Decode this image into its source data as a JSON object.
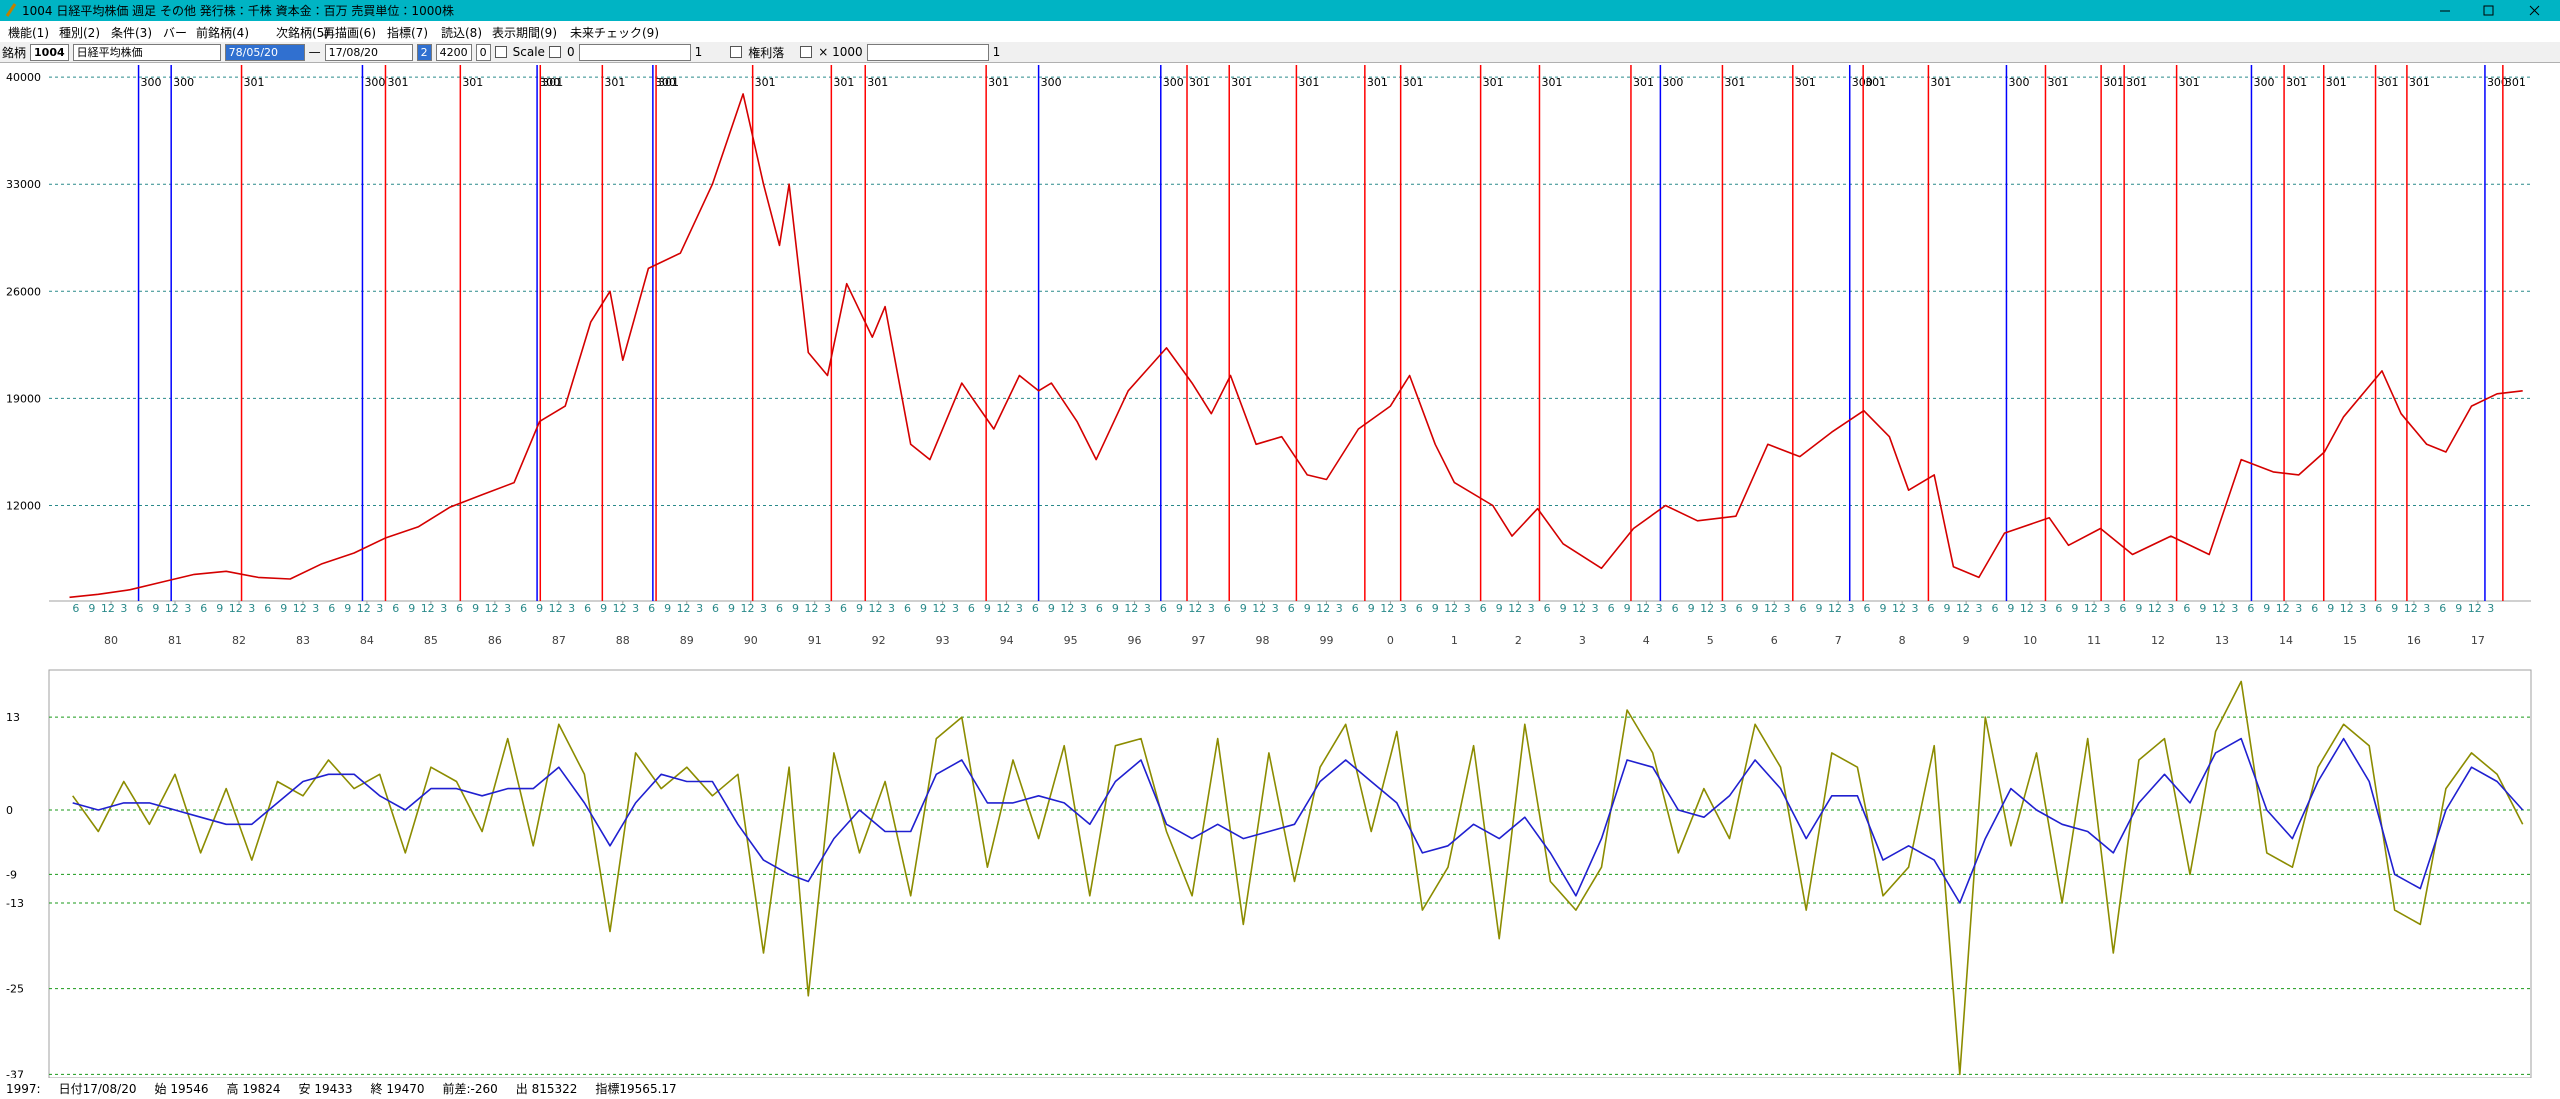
{
  "window": {
    "title": "1004 日経平均株価 週足 その他 発行株：千株 資本金：百万 売買単位：1000株",
    "menu": [
      "機能(1)",
      "種別(2)",
      "条件(3)",
      "バー",
      "前銘柄(4)",
      "次銘柄(5)",
      "再描画(6)",
      "指標(7)",
      "読込(8)",
      "表示期間(9)",
      "未来チェック(9)"
    ]
  },
  "toolbar": {
    "code_label": "銘柄",
    "code": "1004",
    "name": "日経平均株価",
    "from": "78/05/20",
    "dash": "—",
    "to": "17/08/20",
    "field1": "2",
    "field2": "4200",
    "field3": "0",
    "scale_label": "Scale",
    "scale_value": "0",
    "field4": "1",
    "rights_label": "権利落",
    "multiplier_label": "× 1000",
    "field5": "1"
  },
  "chart_data": [
    {
      "type": "line",
      "x": [
        1979.35,
        1979.8,
        1980.3,
        1980.8,
        1981.3,
        1981.8,
        1982.3,
        1982.8,
        1983.3,
        1983.8,
        1984.3,
        1984.8,
        1985.3,
        1985.8,
        1986.3,
        1986.7,
        1987.1,
        1987.5,
        1987.8,
        1988.0,
        1988.4,
        1988.9,
        1989.4,
        1989.88,
        1990.2,
        1990.45,
        1990.6,
        1990.9,
        1991.2,
        1991.5,
        1991.9,
        1992.1,
        1992.5,
        1992.8,
        1993.3,
        1993.8,
        1994.2,
        1994.5,
        1994.7,
        1995.1,
        1995.4,
        1995.9,
        1996.5,
        1996.9,
        1997.2,
        1997.5,
        1997.9,
        1998.3,
        1998.7,
        1999.0,
        1999.5,
        2000.0,
        2000.3,
        2000.7,
        2001.0,
        2001.6,
        2001.9,
        2002.3,
        2002.7,
        2003.3,
        2003.8,
        2004.3,
        2004.8,
        2005.4,
        2005.9,
        2006.4,
        2006.9,
        2007.4,
        2007.8,
        2008.1,
        2008.5,
        2008.8,
        2009.2,
        2009.6,
        2010.3,
        2010.6,
        2011.1,
        2011.6,
        2012.2,
        2012.8,
        2013.3,
        2013.8,
        2014.2,
        2014.6,
        2014.9,
        2015.5,
        2015.8,
        2016.2,
        2016.5,
        2016.9,
        2017.3,
        2017.7
      ],
      "series": [
        {
          "color": "#d40000",
          "values": [
            6000,
            6200,
            6500,
            7000,
            7500,
            7700,
            7300,
            7200,
            8200,
            8900,
            9900,
            10600,
            11900,
            12700,
            13500,
            17500,
            18500,
            24000,
            26000,
            21500,
            27500,
            28500,
            33000,
            38900,
            33000,
            29000,
            33000,
            22000,
            20500,
            26500,
            23000,
            25000,
            16000,
            15000,
            20000,
            17000,
            20500,
            19500,
            20000,
            17500,
            15000,
            19500,
            22300,
            20000,
            18000,
            20500,
            16000,
            16500,
            14000,
            13700,
            17000,
            18500,
            20500,
            16000,
            13500,
            12000,
            10000,
            11800,
            9500,
            7900,
            10500,
            12000,
            11000,
            11300,
            16000,
            15200,
            16800,
            18200,
            16500,
            13000,
            14000,
            8000,
            7300,
            10200,
            11200,
            9400,
            10500,
            8800,
            10000,
            8800,
            15000,
            14200,
            14000,
            15500,
            17800,
            20800,
            18000,
            16000,
            15500,
            18500,
            19300,
            19500
          ]
        }
      ],
      "xlim": [
        1979.03,
        2017.83
      ],
      "xticks": [
        {
          "value": 1980,
          "label": "80"
        },
        {
          "value": 1981,
          "label": "81"
        },
        {
          "value": 1982,
          "label": "82"
        },
        {
          "value": 1983,
          "label": "83"
        },
        {
          "value": 1984,
          "label": "84"
        },
        {
          "value": 1985,
          "label": "85"
        },
        {
          "value": 1986,
          "label": "86"
        },
        {
          "value": 1987,
          "label": "87"
        },
        {
          "value": 1988,
          "label": "88"
        },
        {
          "value": 1989,
          "label": "89"
        },
        {
          "value": 1990,
          "label": "90"
        },
        {
          "value": 1991,
          "label": "91"
        },
        {
          "value": 1992,
          "label": "92"
        },
        {
          "value": 1993,
          "label": "93"
        },
        {
          "value": 1994,
          "label": "94"
        },
        {
          "value": 1995,
          "label": "95"
        },
        {
          "value": 1996,
          "label": "96"
        },
        {
          "value": 1997,
          "label": "97"
        },
        {
          "value": 1998,
          "label": "98"
        },
        {
          "value": 1999,
          "label": "99"
        },
        {
          "value": 2000,
          "label": "0"
        },
        {
          "value": 2001,
          "label": "1"
        },
        {
          "value": 2002,
          "label": "2"
        },
        {
          "value": 2003,
          "label": "3"
        },
        {
          "value": 2004,
          "label": "4"
        },
        {
          "value": 2005,
          "label": "5"
        },
        {
          "value": 2006,
          "label": "6"
        },
        {
          "value": 2007,
          "label": "7"
        },
        {
          "value": 2008,
          "label": "8"
        },
        {
          "value": 2009,
          "label": "9"
        },
        {
          "value": 2010,
          "label": "10"
        },
        {
          "value": 2011,
          "label": "11"
        },
        {
          "value": 2012,
          "label": "12"
        },
        {
          "value": 2013,
          "label": "13"
        },
        {
          "value": 2014,
          "label": "14"
        },
        {
          "value": 2015,
          "label": "15"
        },
        {
          "value": 2016,
          "label": "16"
        },
        {
          "value": 2017,
          "label": "17"
        }
      ],
      "month_labels": [
        "6",
        "9",
        "12",
        "3"
      ],
      "ylim": [
        5760,
        40790
      ],
      "yticks": [
        12000,
        19000,
        26000,
        33000,
        40000
      ],
      "grid": true,
      "grid_color": "#2a8a8a",
      "signals": [
        {
          "x": 1980.43,
          "label": "300",
          "color": "#0000ff"
        },
        {
          "x": 1980.94,
          "label": "300",
          "color": "#0000ff"
        },
        {
          "x": 1982.04,
          "label": "301",
          "color": "#ff0000"
        },
        {
          "x": 1983.93,
          "label": "300",
          "color": "#0000ff"
        },
        {
          "x": 1984.29,
          "label": "301",
          "color": "#ff0000"
        },
        {
          "x": 1985.46,
          "label": "301",
          "color": "#ff0000"
        },
        {
          "x": 1986.66,
          "label": "300",
          "color": "#0000ff"
        },
        {
          "x": 1986.71,
          "label": "301",
          "color": "#ff0000"
        },
        {
          "x": 1987.68,
          "label": "301",
          "color": "#ff0000"
        },
        {
          "x": 1988.47,
          "label": "300",
          "color": "#0000ff"
        },
        {
          "x": 1988.52,
          "label": "301",
          "color": "#ff0000"
        },
        {
          "x": 1990.03,
          "label": "301",
          "color": "#ff0000"
        },
        {
          "x": 1991.26,
          "label": "301",
          "color": "#ff0000"
        },
        {
          "x": 1991.79,
          "label": "301",
          "color": "#ff0000"
        },
        {
          "x": 1993.68,
          "label": "301",
          "color": "#ff0000"
        },
        {
          "x": 1994.5,
          "label": "300",
          "color": "#0000ff"
        },
        {
          "x": 1996.41,
          "label": "300",
          "color": "#0000ff"
        },
        {
          "x": 1996.82,
          "label": "301",
          "color": "#ff0000"
        },
        {
          "x": 1997.48,
          "label": "301",
          "color": "#ff0000"
        },
        {
          "x": 1998.53,
          "label": "301",
          "color": "#ff0000"
        },
        {
          "x": 1999.6,
          "label": "301",
          "color": "#ff0000"
        },
        {
          "x": 2000.16,
          "label": "301",
          "color": "#ff0000"
        },
        {
          "x": 2001.41,
          "label": "301",
          "color": "#ff0000"
        },
        {
          "x": 2002.33,
          "label": "301",
          "color": "#ff0000"
        },
        {
          "x": 2003.76,
          "label": "301",
          "color": "#ff0000"
        },
        {
          "x": 2004.22,
          "label": "300",
          "color": "#0000ff"
        },
        {
          "x": 2005.19,
          "label": "301",
          "color": "#ff0000"
        },
        {
          "x": 2006.29,
          "label": "301",
          "color": "#ff0000"
        },
        {
          "x": 2007.18,
          "label": "300",
          "color": "#0000ff"
        },
        {
          "x": 2007.39,
          "label": "301",
          "color": "#ff0000"
        },
        {
          "x": 2008.41,
          "label": "301",
          "color": "#ff0000"
        },
        {
          "x": 2009.63,
          "label": "300",
          "color": "#0000ff"
        },
        {
          "x": 2010.24,
          "label": "301",
          "color": "#ff0000"
        },
        {
          "x": 2011.11,
          "label": "301",
          "color": "#ff0000"
        },
        {
          "x": 2011.47,
          "label": "301",
          "color": "#ff0000"
        },
        {
          "x": 2012.29,
          "label": "301",
          "color": "#ff0000"
        },
        {
          "x": 2013.46,
          "label": "300",
          "color": "#0000ff"
        },
        {
          "x": 2013.97,
          "label": "301",
          "color": "#ff0000"
        },
        {
          "x": 2014.59,
          "label": "301",
          "color": "#ff0000"
        },
        {
          "x": 2015.4,
          "label": "301",
          "color": "#ff0000"
        },
        {
          "x": 2015.89,
          "label": "301",
          "color": "#ff0000"
        },
        {
          "x": 2017.11,
          "label": "300",
          "color": "#0000ff"
        },
        {
          "x": 2017.39,
          "label": "301",
          "color": "#ff0000"
        }
      ]
    },
    {
      "type": "line",
      "x": [
        1979.4,
        1979.8,
        1980.2,
        1980.6,
        1981.0,
        1981.4,
        1981.8,
        1982.2,
        1982.6,
        1983.0,
        1983.4,
        1983.8,
        1984.2,
        1984.6,
        1985.0,
        1985.4,
        1985.8,
        1986.2,
        1986.6,
        1987.0,
        1987.4,
        1987.8,
        1988.2,
        1988.6,
        1989.0,
        1989.4,
        1989.8,
        1990.2,
        1990.6,
        1990.9,
        1991.3,
        1991.7,
        1992.1,
        1992.5,
        1992.9,
        1993.3,
        1993.7,
        1994.1,
        1994.5,
        1994.9,
        1995.3,
        1995.7,
        1996.1,
        1996.5,
        1996.9,
        1997.3,
        1997.7,
        1998.1,
        1998.5,
        1998.9,
        1999.3,
        1999.7,
        2000.1,
        2000.5,
        2000.9,
        2001.3,
        2001.7,
        2002.1,
        2002.5,
        2002.9,
        2003.3,
        2003.7,
        2004.1,
        2004.5,
        2004.9,
        2005.3,
        2005.7,
        2006.1,
        2006.5,
        2006.9,
        2007.3,
        2007.7,
        2008.1,
        2008.5,
        2008.9,
        2009.3,
        2009.7,
        2010.1,
        2010.5,
        2010.9,
        2011.3,
        2011.7,
        2012.1,
        2012.5,
        2012.9,
        2013.3,
        2013.7,
        2014.1,
        2014.5,
        2014.9,
        2015.3,
        2015.7,
        2016.1,
        2016.5,
        2016.9,
        2017.3,
        2017.7
      ],
      "series": [
        {
          "color": "#8c8c00",
          "values": [
            2,
            -3,
            4,
            -2,
            5,
            -6,
            3,
            -7,
            4,
            2,
            7,
            3,
            5,
            -6,
            6,
            4,
            -3,
            10,
            -5,
            12,
            5,
            -17,
            8,
            3,
            6,
            2,
            5,
            -20,
            6,
            -26,
            8,
            -6,
            4,
            -12,
            10,
            13,
            -8,
            7,
            -4,
            9,
            -12,
            9,
            10,
            -3,
            -12,
            10,
            -16,
            8,
            -10,
            6,
            12,
            -3,
            11,
            -14,
            -8,
            9,
            -18,
            12,
            -10,
            -14,
            -8,
            14,
            8,
            -6,
            3,
            -4,
            12,
            6,
            -14,
            8,
            6,
            -12,
            -8,
            9,
            -37,
            13,
            -5,
            8,
            -13,
            10,
            -20,
            7,
            10,
            -9,
            11,
            18,
            -6,
            -8,
            6,
            12,
            9,
            -14,
            -16,
            3,
            8,
            5,
            -2
          ]
        },
        {
          "color": "#2020d0",
          "values": [
            1,
            0,
            1,
            1,
            0,
            -1,
            -2,
            -2,
            1,
            4,
            5,
            5,
            2,
            0,
            3,
            3,
            2,
            3,
            3,
            6,
            1,
            -5,
            1,
            5,
            4,
            4,
            -2,
            -7,
            -9,
            -10,
            -4,
            0,
            -3,
            -3,
            5,
            7,
            1,
            1,
            2,
            1,
            -2,
            4,
            7,
            -2,
            -4,
            -2,
            -4,
            -3,
            -2,
            4,
            7,
            4,
            1,
            -6,
            -5,
            -2,
            -4,
            -1,
            -6,
            -12,
            -4,
            7,
            6,
            0,
            -1,
            2,
            7,
            3,
            -4,
            2,
            2,
            -7,
            -5,
            -7,
            -13,
            -4,
            3,
            0,
            -2,
            -3,
            -6,
            1,
            5,
            1,
            8,
            10,
            0,
            -4,
            4,
            10,
            4,
            -9,
            -11,
            0,
            6,
            4,
            0
          ]
        }
      ],
      "xlim": [
        1979.03,
        2017.83
      ],
      "ylim": [
        -37.5,
        19.6
      ],
      "yticks": [
        13,
        0,
        -9,
        -13,
        -25,
        -37
      ],
      "grid": true,
      "grid_color": "#1a9a1a"
    }
  ],
  "status": [
    "1997:",
    "日付17/08/20",
    "始 19546",
    "高 19824",
    "安 19433",
    "終 19470",
    "前差:-260",
    "出 815322",
    "指標19565.17"
  ]
}
